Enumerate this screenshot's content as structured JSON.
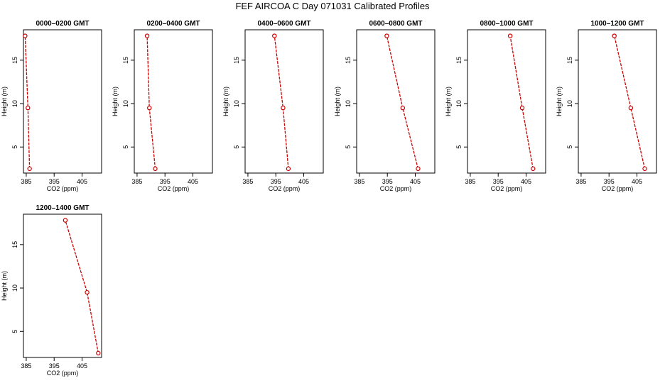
{
  "figure": {
    "title": "FEF AIRCOA C  Day 071031  Calibrated Profiles"
  },
  "colors": {
    "series": "#cc0000",
    "axes": "#000000",
    "background": "#ffffff"
  },
  "chart_data": [
    {
      "type": "line",
      "title": "0000–0200 GMT",
      "xlabel": "CO2 (ppm)",
      "ylabel": "Height (m)",
      "xlim": [
        384,
        412
      ],
      "ylim": [
        2,
        18.5
      ],
      "xticks": [
        385,
        395,
        405
      ],
      "yticks": [
        5,
        10,
        15
      ],
      "grid": false,
      "markers": "open-circle",
      "series": [
        {
          "x": [
            386.2,
            385.6,
            384.6
          ],
          "y": [
            2.5,
            9.5,
            17.8
          ]
        }
      ]
    },
    {
      "type": "line",
      "title": "0200–0400 GMT",
      "xlabel": "CO2 (ppm)",
      "ylabel": "Height (m)",
      "xlim": [
        384,
        412
      ],
      "ylim": [
        2,
        18.5
      ],
      "xticks": [
        385,
        395,
        405
      ],
      "yticks": [
        5,
        10,
        15
      ],
      "grid": false,
      "markers": "open-circle",
      "series": [
        {
          "x": [
            391.5,
            389.4,
            388.6
          ],
          "y": [
            2.5,
            9.5,
            17.8
          ]
        }
      ]
    },
    {
      "type": "line",
      "title": "0400–0600 GMT",
      "xlabel": "CO2 (ppm)",
      "ylabel": "Height (m)",
      "xlim": [
        384,
        412
      ],
      "ylim": [
        2,
        18.5
      ],
      "xticks": [
        385,
        395,
        405
      ],
      "yticks": [
        5,
        10,
        15
      ],
      "grid": false,
      "markers": "open-circle",
      "series": [
        {
          "x": [
            399.5,
            397.6,
            394.5
          ],
          "y": [
            2.5,
            9.5,
            17.8
          ]
        }
      ]
    },
    {
      "type": "line",
      "title": "0600–0800 GMT",
      "xlabel": "CO2 (ppm)",
      "ylabel": "Height (m)",
      "xlim": [
        384,
        412
      ],
      "ylim": [
        2,
        18.5
      ],
      "xticks": [
        385,
        395,
        405
      ],
      "yticks": [
        5,
        10,
        15
      ],
      "grid": false,
      "markers": "open-circle",
      "series": [
        {
          "x": [
            406.0,
            400.5,
            394.8
          ],
          "y": [
            2.5,
            9.5,
            17.8
          ]
        }
      ]
    },
    {
      "type": "line",
      "title": "0800–1000 GMT",
      "xlabel": "CO2 (ppm)",
      "ylabel": "Height (m)",
      "xlim": [
        384,
        412
      ],
      "ylim": [
        2,
        18.5
      ],
      "xticks": [
        385,
        395,
        405
      ],
      "yticks": [
        5,
        10,
        15
      ],
      "grid": false,
      "markers": "open-circle",
      "series": [
        {
          "x": [
            407.5,
            403.6,
            399.3
          ],
          "y": [
            2.5,
            9.5,
            17.8
          ]
        }
      ]
    },
    {
      "type": "line",
      "title": "1000–1200 GMT",
      "xlabel": "CO2 (ppm)",
      "ylabel": "Height (m)",
      "xlim": [
        384,
        412
      ],
      "ylim": [
        2,
        18.5
      ],
      "xticks": [
        385,
        395,
        405
      ],
      "yticks": [
        5,
        10,
        15
      ],
      "grid": false,
      "markers": "open-circle",
      "series": [
        {
          "x": [
            407.8,
            402.8,
            396.9
          ],
          "y": [
            2.5,
            9.5,
            17.8
          ]
        }
      ]
    },
    {
      "type": "line",
      "title": "1200–1400 GMT",
      "xlabel": "CO2 (ppm)",
      "ylabel": "Height (m)",
      "xlim": [
        384,
        412
      ],
      "ylim": [
        2,
        18.5
      ],
      "xticks": [
        385,
        395,
        405
      ],
      "yticks": [
        5,
        10,
        15
      ],
      "grid": false,
      "markers": "open-circle",
      "series": [
        {
          "x": [
            410.8,
            406.8,
            399.0
          ],
          "y": [
            2.5,
            9.5,
            17.8
          ]
        }
      ]
    }
  ]
}
